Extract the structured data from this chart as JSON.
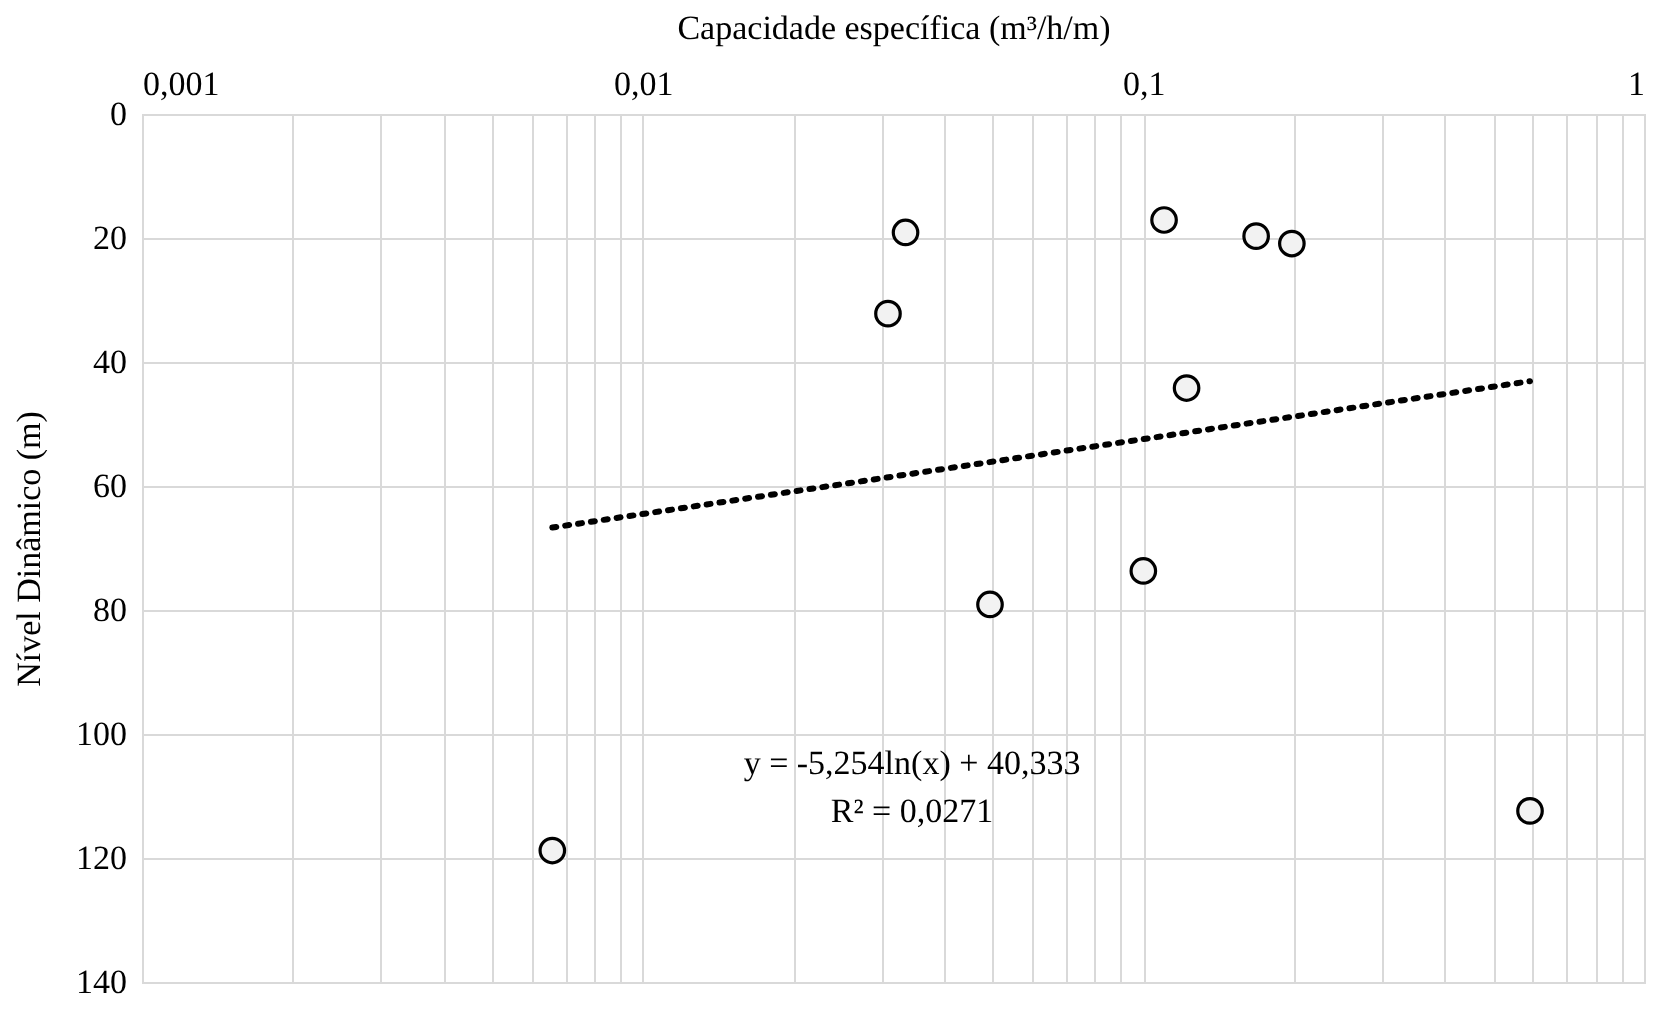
{
  "chart_data": {
    "type": "scatter",
    "xlabel": "Capacidade específica (m³/h/m)",
    "ylabel": "Nível Dinâmico (m)",
    "log": "x",
    "xlim": [
      0.001,
      1
    ],
    "xticks": [
      {
        "value": 0.001,
        "label": "0,001"
      },
      {
        "value": 0.002,
        "label": null
      },
      {
        "value": 0.003,
        "label": null
      },
      {
        "value": 0.004,
        "label": null
      },
      {
        "value": 0.005,
        "label": null
      },
      {
        "value": 0.006,
        "label": null
      },
      {
        "value": 0.007,
        "label": null
      },
      {
        "value": 0.008,
        "label": null
      },
      {
        "value": 0.009,
        "label": null
      },
      {
        "value": 0.01,
        "label": "0,01"
      },
      {
        "value": 0.02,
        "label": null
      },
      {
        "value": 0.03,
        "label": null
      },
      {
        "value": 0.04,
        "label": null
      },
      {
        "value": 0.05,
        "label": null
      },
      {
        "value": 0.06,
        "label": null
      },
      {
        "value": 0.07,
        "label": null
      },
      {
        "value": 0.08,
        "label": null
      },
      {
        "value": 0.09,
        "label": null
      },
      {
        "value": 0.1,
        "label": "0,1"
      },
      {
        "value": 0.2,
        "label": null
      },
      {
        "value": 0.3,
        "label": null
      },
      {
        "value": 0.4,
        "label": null
      },
      {
        "value": 0.5,
        "label": null
      },
      {
        "value": 0.6,
        "label": null
      },
      {
        "value": 0.7,
        "label": null
      },
      {
        "value": 0.8,
        "label": null
      },
      {
        "value": 0.9,
        "label": null
      },
      1
    ],
    "ylim": [
      140,
      0
    ],
    "yticks": [
      0,
      20,
      40,
      60,
      80,
      100,
      120,
      140
    ],
    "grid": true,
    "marker": "circle",
    "series": [
      {
        "color": "#000000",
        "x": [
          0.0335,
          0.0309,
          0.11,
          0.168,
          0.198,
          0.122,
          0.0494,
          0.1,
          0.0066,
          0.592
        ],
        "values": [
          19.1,
          32.2,
          17.1,
          19.7,
          20.9,
          44.2,
          79.1,
          73.7,
          118.8,
          112.4
        ]
      },
      {
        "type": "line",
        "color": "#000000",
        "line_style": "dotted",
        "marker": "none",
        "x": [
          0.0066,
          0.592
        ],
        "values": [
          66.7,
          43.1
        ]
      }
    ],
    "annotations": [
      "y = -5,254ln(x) + 40,333",
      "R² = 0,0271"
    ]
  }
}
